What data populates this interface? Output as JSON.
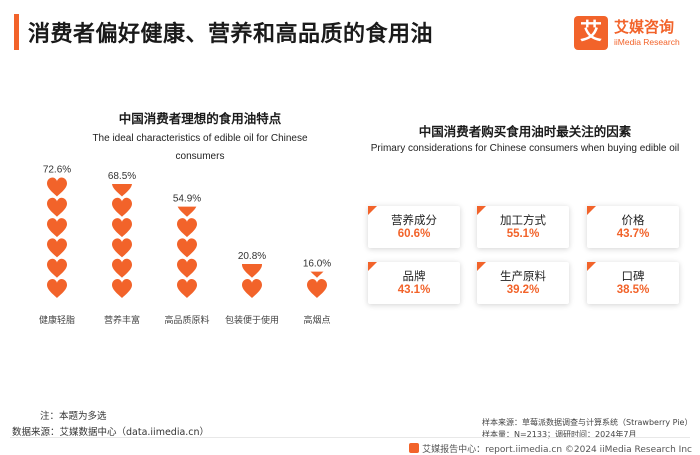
{
  "header": {
    "title": "消费者偏好健康、营养和高品质的食用油",
    "accent_color": "#f2632a"
  },
  "logo": {
    "mark": "艾",
    "name_cn": "艾媒咨询",
    "name_en": "iiMedia Research"
  },
  "left_panel": {
    "title_cn": "中国消费者理想的食用油特点",
    "title_en": "The ideal characteristics of edible oil for Chinese consumers"
  },
  "chart_data": {
    "type": "bar",
    "title": "中国消费者理想的食用油特点",
    "subtitle": "The ideal characteristics of edible oil for Chinese consumers",
    "categories": [
      "健康轻脂",
      "营养丰富",
      "高品质原料",
      "包装便于使用",
      "高烟点"
    ],
    "values": [
      72.6,
      68.5,
      54.9,
      20.8,
      16.0
    ],
    "value_labels": [
      "72.6%",
      "68.5%",
      "54.9%",
      "20.8%",
      "16.0%"
    ],
    "unit": "%",
    "ylim": [
      0,
      100
    ],
    "mark": "heart-icon stack",
    "color": "#f2632a",
    "grid": false
  },
  "right_panel": {
    "title_cn": "中国消费者购买食用油时最关注的因素",
    "title_en": "Primary considerations for Chinese consumers when buying edible oil",
    "factors": [
      {
        "name": "营养成分",
        "value": "60.6%"
      },
      {
        "name": "加工方式",
        "value": "55.1%"
      },
      {
        "name": "价格",
        "value": "43.7%"
      },
      {
        "name": "品牌",
        "value": "43.1%"
      },
      {
        "name": "生产原料",
        "value": "39.2%"
      },
      {
        "name": "口碑",
        "value": "38.5%"
      }
    ]
  },
  "notes": {
    "note": "注：本题为多选",
    "source_left": "数据来源：艾媒数据中心（data.iimedia.cn）",
    "source_right_line1": "样本来源：草莓派数据调查与计算系统（Strawberry Pie）",
    "source_right_line2": "样本量：N=2133；调研时间：2024年7月"
  },
  "footer": {
    "text": "艾媒报告中心：report.iimedia.cn  ©2024  iiMedia Research  Inc"
  }
}
